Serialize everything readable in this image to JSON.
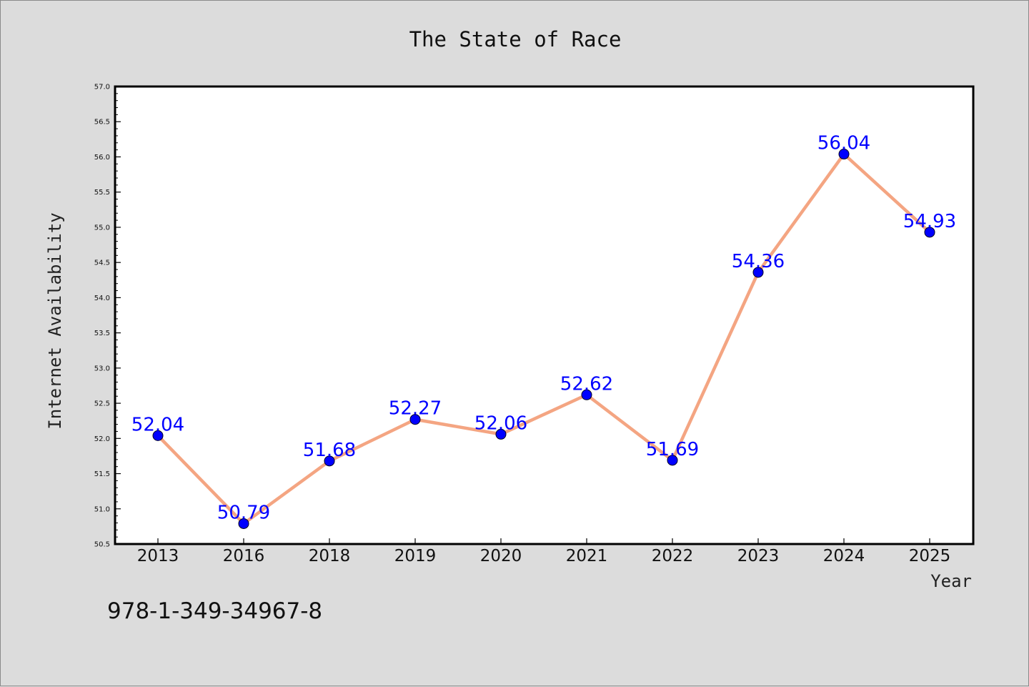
{
  "chart_data": {
    "type": "line",
    "title": "The State of Race",
    "xlabel": "Year",
    "ylabel": "Internet Availability",
    "categories": [
      "2013",
      "2016",
      "2018",
      "2019",
      "2020",
      "2021",
      "2022",
      "2023",
      "2024",
      "2025"
    ],
    "values": [
      52.04,
      50.79,
      51.68,
      52.27,
      52.06,
      52.62,
      51.69,
      54.36,
      56.04,
      54.93
    ],
    "data_labels": [
      "52.04",
      "50.79",
      "51.68",
      "52.27",
      "52.06",
      "52.62",
      "51.69",
      "54.36",
      "56.04",
      "54.93"
    ],
    "ylim": [
      50.5,
      57.0
    ],
    "yticks": [
      "50.5",
      "51.0",
      "51.5",
      "52.0",
      "52.5",
      "53.0",
      "53.5",
      "54.0",
      "54.5",
      "55.0",
      "55.5",
      "56.0",
      "56.5",
      "57.0"
    ],
    "grid": false,
    "legend": "none",
    "colors": {
      "line": "#f4a582",
      "marker": "#0000ff",
      "label": "#0000ff",
      "background": "#dcdcdc",
      "plot_background": "#ffffff"
    }
  },
  "annotation": "978-1-349-34967-8"
}
